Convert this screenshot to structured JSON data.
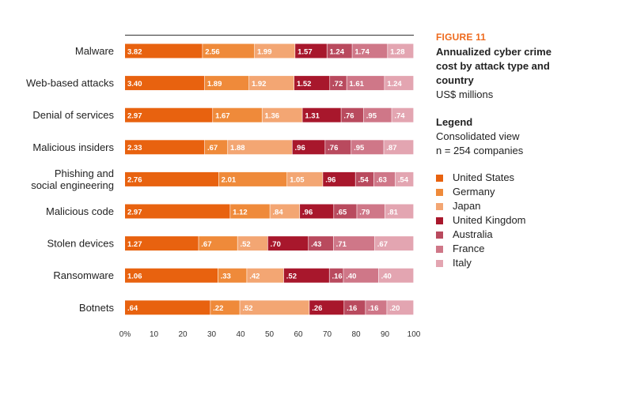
{
  "figure": {
    "number": "FIGURE 11",
    "title": "Annualized cyber crime cost by attack type and country",
    "units": "US$ millions"
  },
  "legend": {
    "title": "Legend",
    "lines": [
      "Consolidated view",
      "n = 254 companies"
    ],
    "placement": "right"
  },
  "chart_data": {
    "type": "bar",
    "orientation": "horizontal",
    "stacked": true,
    "normalized_percent": true,
    "categories": [
      "Malware",
      "Web-based attacks",
      "Denial of services",
      "Malicious insiders",
      "Phishing and social engineering",
      "Malicious code",
      "Stolen devices",
      "Ransomware",
      "Botnets"
    ],
    "series": [
      {
        "name": "United States",
        "color": "#e8620f",
        "values": [
          3.82,
          3.4,
          2.97,
          2.33,
          2.76,
          2.97,
          1.27,
          1.06,
          0.64
        ],
        "labels": [
          "3.82",
          "3.40",
          "2.97",
          "2.33",
          "2.76",
          "2.97",
          "1.27",
          "1.06",
          ".64"
        ]
      },
      {
        "name": "Germany",
        "color": "#ef8a3a",
        "values": [
          2.56,
          1.89,
          1.67,
          0.67,
          2.01,
          1.12,
          0.67,
          0.33,
          0.22
        ],
        "labels": [
          "2.56",
          "1.89",
          "1.67",
          ".67",
          "2.01",
          "1.12",
          ".67",
          ".33",
          ".22"
        ]
      },
      {
        "name": "Japan",
        "color": "#f3a673",
        "values": [
          1.99,
          1.92,
          1.36,
          1.88,
          1.05,
          0.84,
          0.52,
          0.42,
          0.52
        ],
        "labels": [
          "1.99",
          "1.92",
          "1.36",
          "1.88",
          "1.05",
          ".84",
          ".52",
          ".42",
          ".52"
        ]
      },
      {
        "name": "United Kingdom",
        "color": "#a8172c",
        "values": [
          1.57,
          1.52,
          1.31,
          0.96,
          0.96,
          0.96,
          0.7,
          0.52,
          0.26
        ],
        "labels": [
          "1.57",
          "1.52",
          "1.31",
          ".96",
          ".96",
          ".96",
          ".70",
          ".52",
          ".26"
        ]
      },
      {
        "name": "Australia",
        "color": "#b94a5e",
        "values": [
          1.24,
          0.72,
          0.76,
          0.76,
          0.54,
          0.65,
          0.43,
          0.16,
          0.16
        ],
        "labels": [
          "1.24",
          ".72",
          ".76",
          ".76",
          ".54",
          ".65",
          ".43",
          ".16",
          ".16"
        ]
      },
      {
        "name": "France",
        "color": "#cf7788",
        "values": [
          1.74,
          1.61,
          0.95,
          0.95,
          0.63,
          0.79,
          0.71,
          0.4,
          0.16
        ],
        "labels": [
          "1.74",
          "1.61",
          ".95",
          ".95",
          ".63",
          ".79",
          ".71",
          ".40",
          ".16"
        ]
      },
      {
        "name": "Italy",
        "color": "#e3a5b1",
        "values": [
          1.28,
          1.24,
          0.74,
          0.87,
          0.54,
          0.81,
          0.67,
          0.4,
          0.2
        ],
        "labels": [
          "1.28",
          "1.24",
          ".74",
          ".87",
          ".54",
          ".81",
          ".67",
          ".40",
          ".20"
        ]
      }
    ],
    "x_ticks": [
      "0%",
      "10",
      "20",
      "30",
      "40",
      "50",
      "60",
      "70",
      "80",
      "90",
      "100"
    ],
    "xlim": [
      0,
      100
    ],
    "grid": false
  }
}
